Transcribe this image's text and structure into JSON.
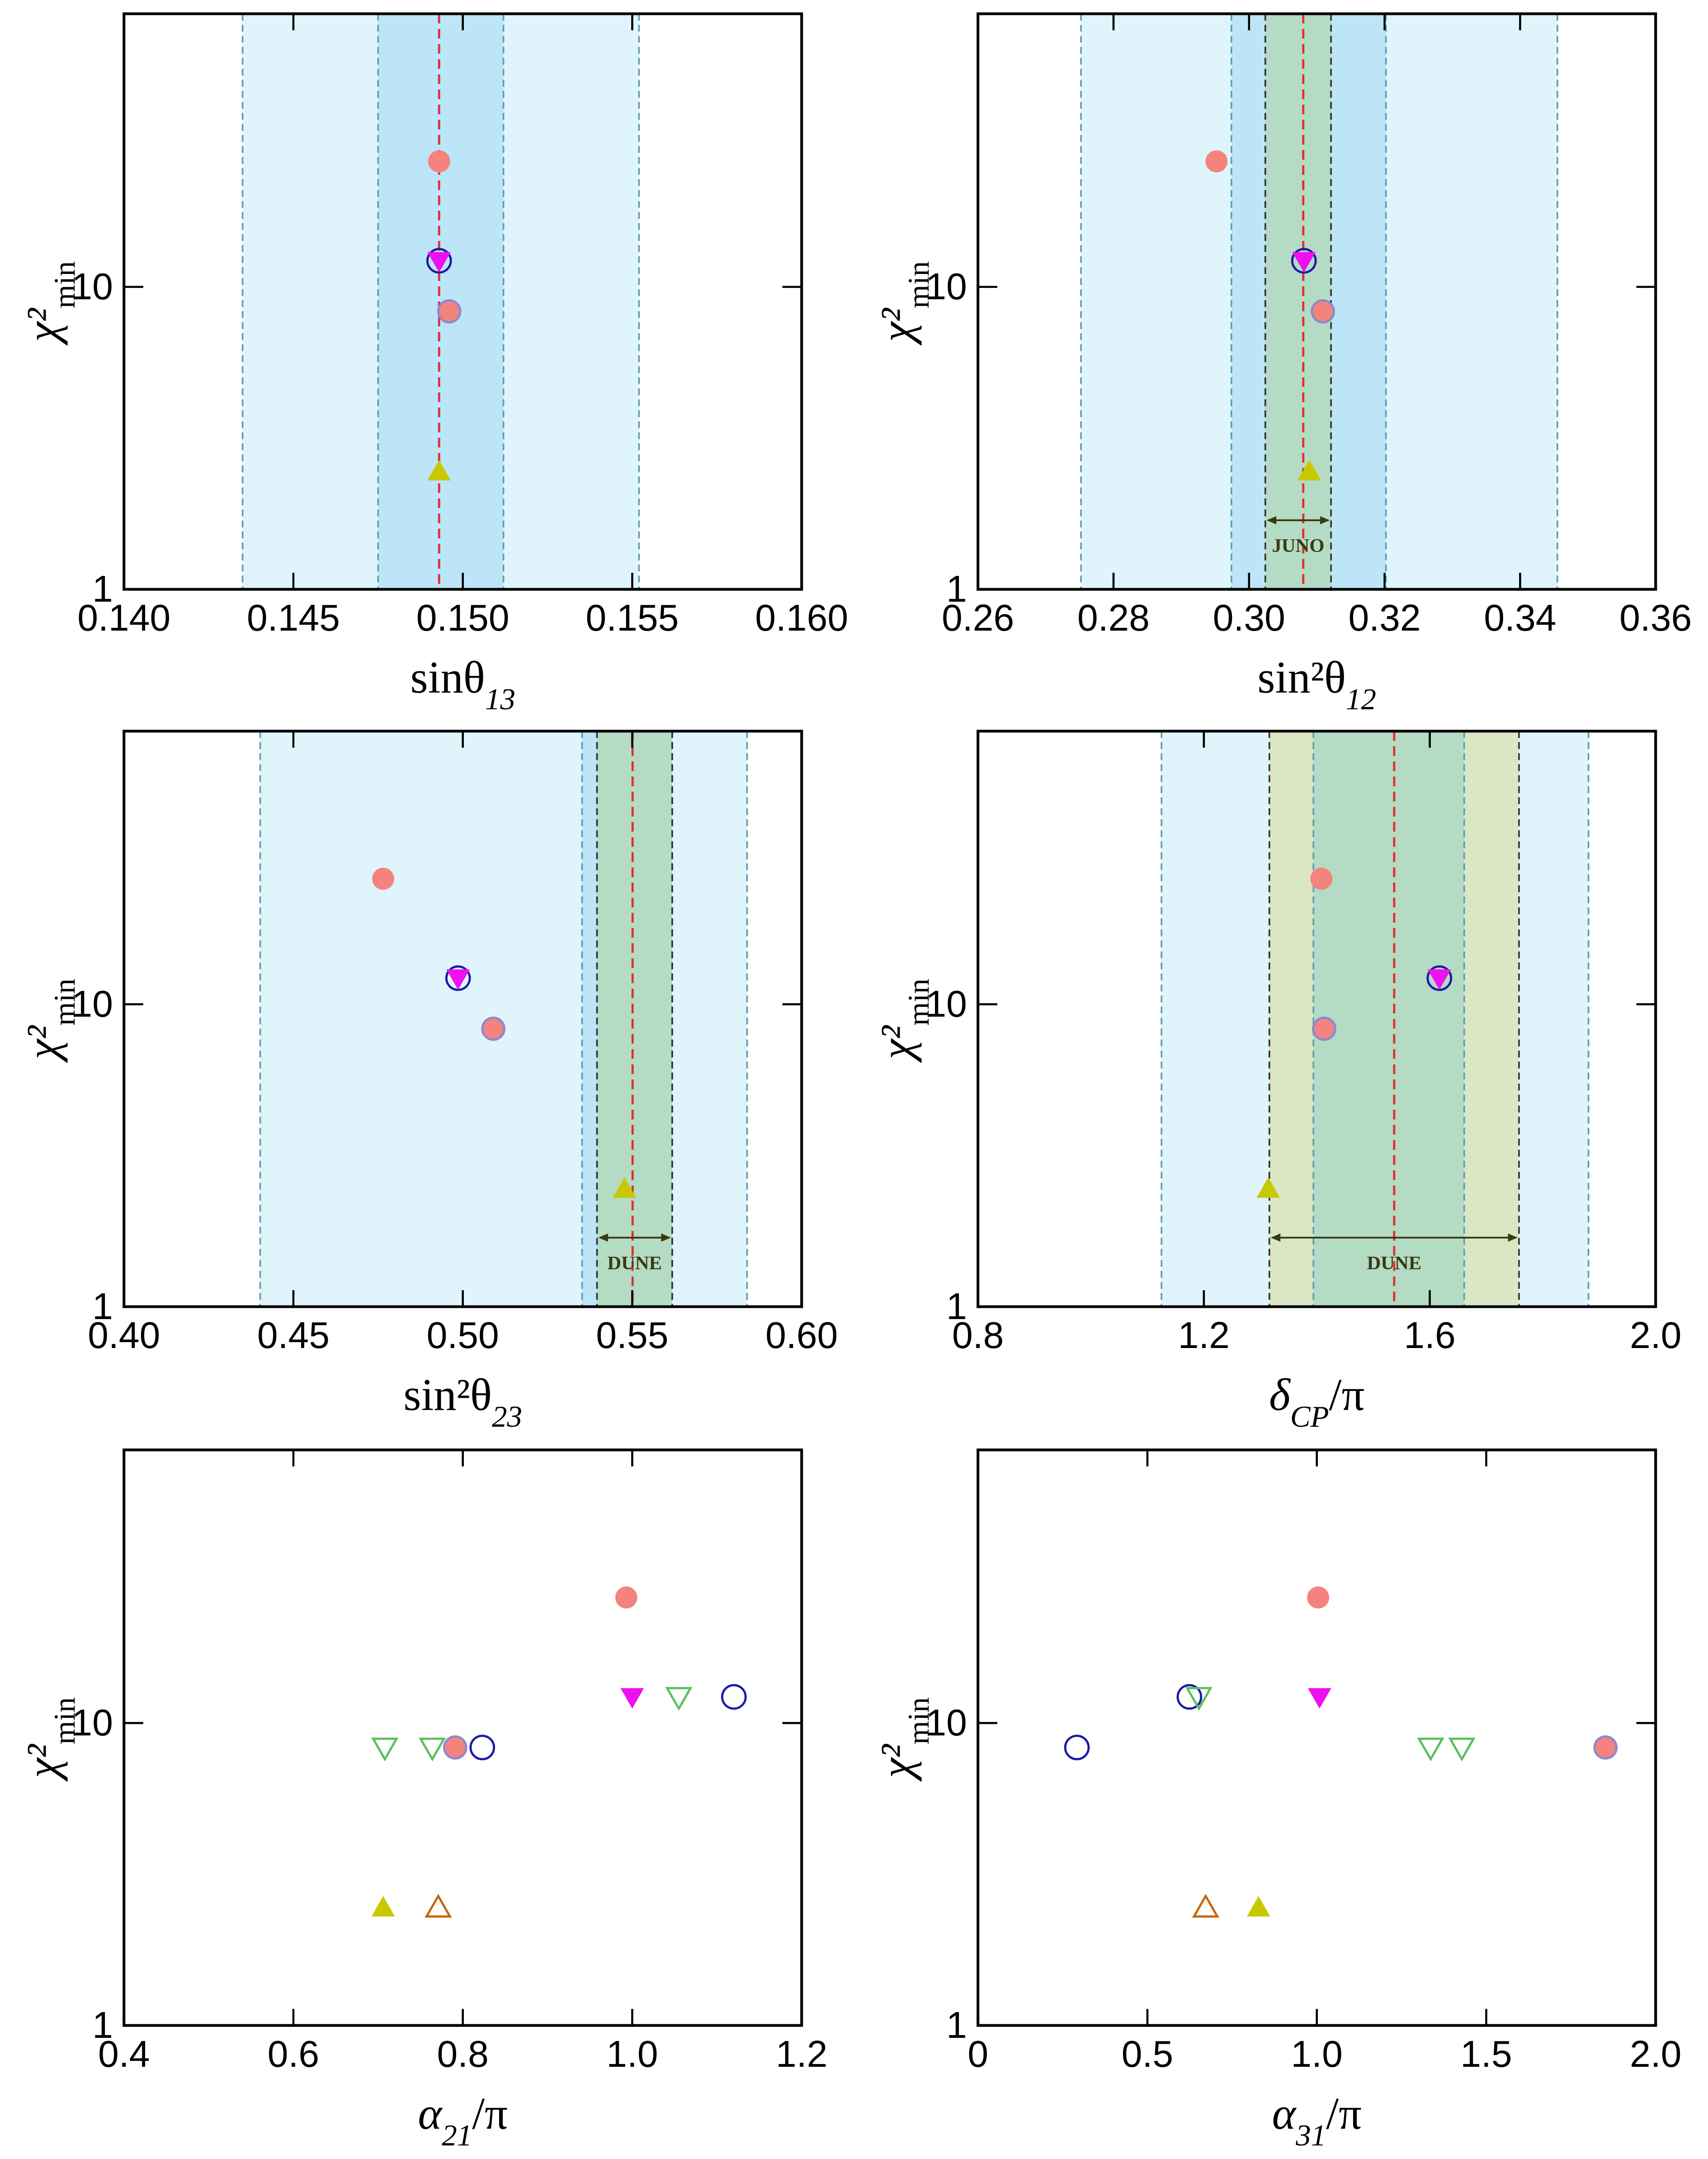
{
  "chart_data": [
    {
      "type": "scatter",
      "xlabel": [
        "sinθ",
        "13"
      ],
      "ylabel": [
        "χ²",
        "min"
      ],
      "ylog": true,
      "xlim": [
        0.14,
        0.16
      ],
      "xticks": [
        {
          "value": 0.14,
          "label": "0.140"
        },
        {
          "value": 0.145,
          "label": "0.145"
        },
        {
          "value": 0.15,
          "label": "0.150"
        },
        {
          "value": 0.155,
          "label": "0.155"
        },
        {
          "value": 0.16,
          "label": "0.160"
        }
      ],
      "ylim": [
        1,
        80
      ],
      "yticks": [
        1,
        10
      ],
      "bands": [
        {
          "x": [
            0.1435,
            0.1552
          ],
          "color": "#e0f4fc",
          "edge": "#5f9db3"
        },
        {
          "x": [
            0.1475,
            0.1512
          ],
          "color": "#bde5f8",
          "edge": "#5f9db3"
        }
      ],
      "vlines": [
        {
          "x": 0.1493,
          "color": "#e03030"
        }
      ],
      "series": [
        {
          "marker": "circle",
          "fill": "#f4837d",
          "stroke": "none",
          "x": [
            0.1493
          ],
          "y": [
            26
          ]
        },
        {
          "marker": "circle",
          "fill": "none",
          "stroke": "#1a1aa6",
          "x": [
            0.1493
          ],
          "y": [
            12.2
          ]
        },
        {
          "marker": "triangle-down",
          "fill": "#ee10ee",
          "stroke": "none",
          "x": [
            0.1493
          ],
          "y": [
            12.2
          ]
        },
        {
          "marker": "circle",
          "fill": "#f4837d",
          "stroke": "#8a8ad0",
          "x": [
            0.1496
          ],
          "y": [
            8.3
          ]
        },
        {
          "marker": "triangle-up",
          "fill": "#c8c800",
          "stroke": "none",
          "x": [
            0.1493
          ],
          "y": [
            2.45
          ]
        }
      ]
    },
    {
      "type": "scatter",
      "xlabel": [
        "sin²θ",
        "12"
      ],
      "ylabel": [
        "χ²",
        "min"
      ],
      "ylog": true,
      "xlim": [
        0.26,
        0.36
      ],
      "xticks": [
        0.26,
        0.28,
        {
          "value": 0.3,
          "label": "0.30"
        },
        0.32,
        0.34,
        0.36
      ],
      "ylim": [
        1,
        80
      ],
      "yticks": [
        1,
        10
      ],
      "bands": [
        {
          "x": [
            0.2752,
            0.3455
          ],
          "color": "#e0f4fc",
          "edge": "#5f9db3"
        },
        {
          "x": [
            0.2974,
            0.3202
          ],
          "color": "#bde5f8",
          "edge": "#5f9db3"
        },
        {
          "x": [
            0.3024,
            0.3121
          ],
          "color": "#b4dbc4",
          "edge": "#333333",
          "label": "JUNO"
        }
      ],
      "vlines": [
        {
          "x": 0.308,
          "color": "#e03030"
        }
      ],
      "series": [
        {
          "marker": "circle",
          "fill": "#f4837d",
          "stroke": "none",
          "x": [
            0.2952
          ],
          "y": [
            26
          ]
        },
        {
          "marker": "circle",
          "fill": "none",
          "stroke": "#1a1aa6",
          "x": [
            0.3081
          ],
          "y": [
            12.2
          ]
        },
        {
          "marker": "triangle-down",
          "fill": "#ee10ee",
          "stroke": "none",
          "x": [
            0.3081
          ],
          "y": [
            12.2
          ]
        },
        {
          "marker": "circle",
          "fill": "#f4837d",
          "stroke": "#8a8ad0",
          "x": [
            0.3109
          ],
          "y": [
            8.3
          ]
        },
        {
          "marker": "triangle-up",
          "fill": "#c8c800",
          "stroke": "none",
          "x": [
            0.3089
          ],
          "y": [
            2.45
          ]
        }
      ]
    },
    {
      "type": "scatter",
      "xlabel": [
        "sin²θ",
        "23"
      ],
      "ylabel": [
        "χ²",
        "min"
      ],
      "ylog": true,
      "xlim": [
        0.4,
        0.6
      ],
      "xticks": [
        {
          "value": 0.4,
          "label": "0.40"
        },
        0.45,
        {
          "value": 0.5,
          "label": "0.50"
        },
        0.55,
        {
          "value": 0.6,
          "label": "0.60"
        }
      ],
      "ylim": [
        1,
        80
      ],
      "yticks": [
        1,
        10
      ],
      "bands": [
        {
          "x": [
            0.4402,
            0.5839
          ],
          "color": "#e0f4fc",
          "edge": "#5f9db3"
        },
        {
          "x": [
            0.5352,
            0.5618
          ],
          "color": "#bde5f8",
          "edge": "#5f9db3"
        },
        {
          "x": [
            0.5396,
            0.5618
          ],
          "color": "#b4dbc4",
          "edge": "#333333",
          "label": "DUNE"
        }
      ],
      "vlines": [
        {
          "x": 0.5501,
          "color": "#e03030"
        }
      ],
      "series": [
        {
          "marker": "circle",
          "fill": "#f4837d",
          "stroke": "none",
          "x": [
            0.4765
          ],
          "y": [
            26
          ]
        },
        {
          "marker": "circle",
          "fill": "none",
          "stroke": "#1a1aa6",
          "x": [
            0.4986
          ],
          "y": [
            12.2
          ]
        },
        {
          "marker": "triangle-down",
          "fill": "#ee10ee",
          "stroke": "none",
          "x": [
            0.4986
          ],
          "y": [
            12.2
          ]
        },
        {
          "marker": "circle",
          "fill": "#f4837d",
          "stroke": "#8a8ad0",
          "x": [
            0.509
          ],
          "y": [
            8.3
          ]
        },
        {
          "marker": "triangle-up",
          "fill": "#c8c800",
          "stroke": "none",
          "x": [
            0.5477
          ],
          "y": [
            2.45
          ]
        }
      ]
    },
    {
      "type": "scatter",
      "xlabel": [
        "δ",
        "CP",
        "/π"
      ],
      "ylabel": [
        "χ²",
        "min"
      ],
      "ylog": true,
      "xlim": [
        0.8,
        2.0
      ],
      "xticks": [
        0.8,
        1.2,
        1.6,
        {
          "value": 2.0,
          "label": "2.0"
        }
      ],
      "ylim": [
        1,
        80
      ],
      "yticks": [
        1,
        10
      ],
      "bands": [
        {
          "x": [
            1.125,
            1.881
          ],
          "color": "#e0f4fc",
          "edge": "#5f9db3"
        },
        {
          "x": [
            1.316,
            1.758
          ],
          "color": "#dbe6c4",
          "edge": "#333333",
          "label": "DUNE"
        },
        {
          "x": [
            1.394,
            1.661
          ],
          "color": "#b4dbc4",
          "edge": "#5f9db3"
        }
      ],
      "vlines": [
        {
          "x": 1.537,
          "color": "#e03030"
        }
      ],
      "series": [
        {
          "marker": "circle",
          "fill": "#f4837d",
          "stroke": "none",
          "x": [
            1.408
          ],
          "y": [
            26
          ]
        },
        {
          "marker": "circle",
          "fill": "none",
          "stroke": "#1a1aa6",
          "x": [
            1.617
          ],
          "y": [
            12.2
          ]
        },
        {
          "marker": "triangle-down",
          "fill": "#ee10ee",
          "stroke": "none",
          "x": [
            1.617
          ],
          "y": [
            12.2
          ]
        },
        {
          "marker": "circle",
          "fill": "#f4837d",
          "stroke": "#8a8ad0",
          "x": [
            1.413
          ],
          "y": [
            8.3
          ]
        },
        {
          "marker": "triangle-up",
          "fill": "#c8c800",
          "stroke": "none",
          "x": [
            1.314
          ],
          "y": [
            2.45
          ]
        }
      ]
    },
    {
      "type": "scatter",
      "xlabel": [
        "α",
        "21",
        "/π"
      ],
      "ylabel": [
        "χ²",
        "min"
      ],
      "ylog": true,
      "xlim": [
        0.4,
        1.2
      ],
      "xticks": [
        0.4,
        0.6,
        0.8,
        {
          "value": 1.0,
          "label": "1.0"
        },
        1.2
      ],
      "ylim": [
        1,
        80
      ],
      "yticks": [
        1,
        10
      ],
      "bands": [],
      "vlines": [],
      "series": [
        {
          "marker": "circle",
          "fill": "#f4837d",
          "stroke": "none",
          "x": [
            0.993
          ],
          "y": [
            26
          ]
        },
        {
          "marker": "circle",
          "fill": "none",
          "stroke": "#1a1aa6",
          "x": [
            0.823,
            1.12
          ],
          "y": [
            8.3,
            12.2
          ]
        },
        {
          "marker": "triangle-down",
          "fill": "#ee10ee",
          "stroke": "none",
          "x": [
            1.0
          ],
          "y": [
            12.2
          ]
        },
        {
          "marker": "circle",
          "fill": "#f4837d",
          "stroke": "#8a8ad0",
          "x": [
            0.791
          ],
          "y": [
            8.3
          ]
        },
        {
          "marker": "triangle-up",
          "fill": "#c8c800",
          "stroke": "none",
          "x": [
            0.706
          ],
          "y": [
            2.45
          ]
        },
        {
          "marker": "triangle-down",
          "fill": "none",
          "stroke": "#5cbf5c",
          "x": [
            0.708,
            0.764,
            1.055
          ],
          "y": [
            8.3,
            8.3,
            12.2
          ]
        },
        {
          "marker": "triangle-up",
          "fill": "none",
          "stroke": "#c8650a",
          "x": [
            0.771
          ],
          "y": [
            2.45
          ]
        }
      ]
    },
    {
      "type": "scatter",
      "xlabel": [
        "α",
        "31",
        "/π"
      ],
      "ylabel": [
        "χ²",
        "min"
      ],
      "ylog": true,
      "xlim": [
        0,
        2.0
      ],
      "xticks": [
        0,
        0.5,
        {
          "value": 1.0,
          "label": "1.0"
        },
        1.5,
        {
          "value": 2.0,
          "label": "2.0"
        }
      ],
      "ylim": [
        1,
        80
      ],
      "yticks": [
        1,
        10
      ],
      "bands": [],
      "vlines": [],
      "series": [
        {
          "marker": "circle",
          "fill": "#f4837d",
          "stroke": "none",
          "x": [
            1.004
          ],
          "y": [
            26
          ]
        },
        {
          "marker": "circle",
          "fill": "none",
          "stroke": "#1a1aa6",
          "x": [
            0.292,
            0.624
          ],
          "y": [
            8.3,
            12.2
          ]
        },
        {
          "marker": "triangle-down",
          "fill": "#ee10ee",
          "stroke": "none",
          "x": [
            1.008
          ],
          "y": [
            12.2
          ]
        },
        {
          "marker": "circle",
          "fill": "#f4837d",
          "stroke": "#8a8ad0",
          "x": [
            1.852
          ],
          "y": [
            8.3
          ]
        },
        {
          "marker": "triangle-up",
          "fill": "#c8c800",
          "stroke": "none",
          "x": [
            0.828
          ],
          "y": [
            2.45
          ]
        },
        {
          "marker": "triangle-down",
          "fill": "none",
          "stroke": "#5cbf5c",
          "x": [
            0.652,
            1.336,
            1.428
          ],
          "y": [
            12.2,
            8.3,
            8.3
          ]
        },
        {
          "marker": "triangle-up",
          "fill": "none",
          "stroke": "#c8650a",
          "x": [
            0.672
          ],
          "y": [
            2.45
          ]
        }
      ]
    }
  ]
}
